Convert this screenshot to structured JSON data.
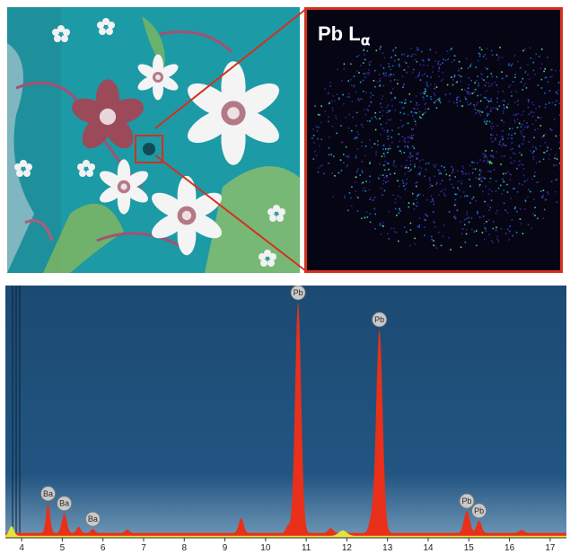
{
  "map_label": {
    "element": "Pb L",
    "line": "α"
  },
  "chart_data": {
    "type": "line",
    "title": "",
    "xlabel": "",
    "ylabel": "",
    "xlim": [
      3.6,
      17.4
    ],
    "ylim": [
      0,
      100
    ],
    "x_ticks": [
      4,
      5,
      6,
      7,
      8,
      9,
      10,
      11,
      12,
      13,
      14,
      15,
      16,
      17
    ],
    "grid": false,
    "legend": "none",
    "colors": {
      "background": "#1f4f77",
      "spectrum": "#e8301a",
      "reference": "#e6e23a"
    },
    "peaks": [
      {
        "x": 4.65,
        "y": 12,
        "width": 0.05,
        "label": "Ba"
      },
      {
        "x": 5.05,
        "y": 8,
        "width": 0.06,
        "label": "Ba"
      },
      {
        "x": 5.4,
        "y": 2.5,
        "width": 0.05,
        "label": ""
      },
      {
        "x": 5.75,
        "y": 1.6,
        "width": 0.05,
        "label": "Ba"
      },
      {
        "x": 6.6,
        "y": 1.4,
        "width": 0.05,
        "label": ""
      },
      {
        "x": 9.4,
        "y": 6,
        "width": 0.06,
        "label": ""
      },
      {
        "x": 10.55,
        "y": 3,
        "width": 0.05,
        "label": ""
      },
      {
        "x": 10.8,
        "y": 94,
        "width": 0.075,
        "label": "Pb"
      },
      {
        "x": 11.6,
        "y": 2,
        "width": 0.06,
        "label": ""
      },
      {
        "x": 12.6,
        "y": 5,
        "width": 0.06,
        "label": ""
      },
      {
        "x": 12.8,
        "y": 83,
        "width": 0.08,
        "label": "Pb"
      },
      {
        "x": 14.95,
        "y": 9,
        "width": 0.07,
        "label": "Pb"
      },
      {
        "x": 15.25,
        "y": 5,
        "width": 0.06,
        "label": "Pb"
      },
      {
        "x": 16.3,
        "y": 1.2,
        "width": 0.06,
        "label": ""
      }
    ],
    "baseline": 2,
    "reference_peaks": [
      {
        "x": 3.75,
        "y": 4,
        "width": 0.06
      },
      {
        "x": 11.9,
        "y": 2.2,
        "width": 0.1
      }
    ]
  }
}
